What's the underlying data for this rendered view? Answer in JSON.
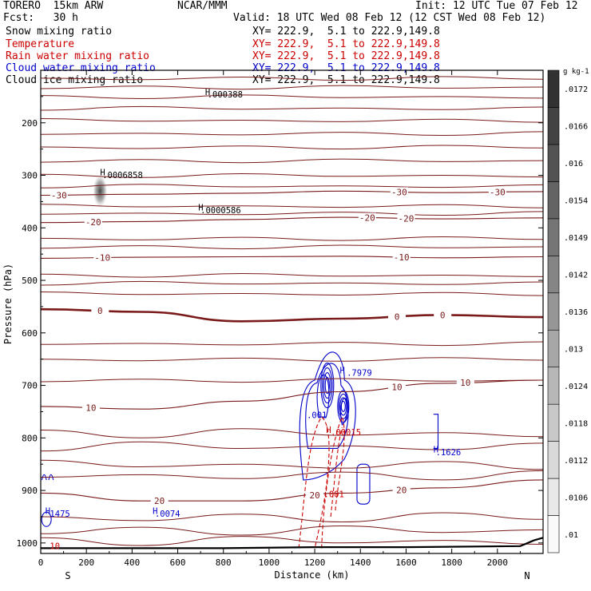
{
  "header": {
    "model": "TORERO  15km ARW",
    "center": "NCAR/MMM",
    "init": "Init: 12 UTC Tue 07 Feb 12",
    "fcst": "Fcst:   30 h",
    "valid": "Valid: 18 UTC Wed 08 Feb 12 (12 CST Wed 08 Feb 12)"
  },
  "fields": [
    {
      "label": "Snow mixing ratio",
      "xy": "XY= 222.9,  5.1 to 222.9,149.8",
      "color": "#000000"
    },
    {
      "label": "Temperature",
      "xy": "XY= 222.9,  5.1 to 222.9,149.8",
      "color": "#cc0000"
    },
    {
      "label": "Rain water mixing ratio",
      "xy": "XY= 222.9,  5.1 to 222.9,149.8",
      "color": "#cc0000"
    },
    {
      "label": "Cloud water mixing ratio",
      "xy": "XY= 222.9,  5.1 to 222.9,149.8",
      "color": "#0000cc"
    },
    {
      "label": "Cloud ice mixing ratio",
      "xy": "XY= 222.9,  5.1 to 222.9,149.8",
      "color": "#000000"
    }
  ],
  "chart_data": {
    "type": "contour-cross-section",
    "xlabel": "Distance (km)",
    "ylabel": "Pressure (hPa)",
    "xlim": [
      0,
      2200
    ],
    "ylim": [
      1020,
      100
    ],
    "x_ticks": [
      0,
      200,
      400,
      600,
      800,
      1000,
      1200,
      1400,
      1600,
      1800,
      2000
    ],
    "y_ticks": [
      200,
      300,
      400,
      500,
      600,
      700,
      800,
      900,
      1000
    ],
    "y_scale": "linear",
    "endpoints": {
      "left": "S",
      "right": "N"
    },
    "temperature_contours": [
      {
        "value": -30,
        "label": "-30",
        "label_x": [
          80,
          1570,
          2000
        ],
        "p": [
          338,
          336,
          334,
          330,
          333,
          331
        ]
      },
      {
        "value": -20,
        "label": "-20",
        "label_x": [
          230,
          1430,
          1600
        ],
        "p": [
          390,
          388,
          384,
          380,
          383,
          381
        ]
      },
      {
        "value": -10,
        "label": "-10",
        "label_x": [
          270,
          1580
        ],
        "p": [
          458,
          456,
          455,
          454,
          457,
          455
        ]
      },
      {
        "value": 0,
        "label": "0",
        "label_x": [
          260,
          1560,
          1760
        ],
        "p": [
          555,
          560,
          578,
          573,
          566,
          570
        ]
      },
      {
        "value": 10,
        "label": "10",
        "label_x": [
          220,
          1560,
          1860
        ],
        "p": [
          740,
          745,
          730,
          712,
          696,
          690
        ]
      },
      {
        "value": 20,
        "label": "20",
        "label_x": [
          520,
          1200,
          1580
        ],
        "p": [
          905,
          920,
          920,
          905,
          895,
          880
        ]
      }
    ],
    "colorbar": {
      "unit": "g kg-1",
      "levels": [
        ".01",
        ".0106",
        ".0112",
        ".0118",
        ".0124",
        ".013",
        ".0136",
        ".0142",
        ".0149",
        ".0154",
        ".016",
        ".0166",
        ".0172"
      ]
    },
    "annotations": [
      {
        "text": "H",
        "x": 260,
        "p": 300,
        "color": "#000000"
      },
      {
        "text": ".0006858",
        "x": 270,
        "p": 305,
        "color": "#000000"
      },
      {
        "text": "H",
        "x": 690,
        "p": 367,
        "color": "#000000"
      },
      {
        "text": ".0000586",
        "x": 700,
        "p": 372,
        "color": "#000000"
      },
      {
        "text": "H",
        "x": 720,
        "p": 147,
        "color": "#000000"
      },
      {
        "text": ".000388",
        "x": 730,
        "p": 152,
        "color": "#000000"
      },
      {
        "text": "H",
        "x": 1310,
        "p": 677,
        "color": "#0000cc"
      },
      {
        "text": ".7979",
        "x": 1340,
        "p": 682,
        "color": "#0000cc"
      },
      {
        "text": ".001",
        "x": 1165,
        "p": 762,
        "color": "#0000cc"
      },
      {
        "text": "H",
        "x": 1250,
        "p": 790,
        "color": "#cc0000"
      },
      {
        "text": ".00015",
        "x": 1270,
        "p": 795,
        "color": "#cc0000"
      },
      {
        "text": "H",
        "x": 1720,
        "p": 828,
        "color": "#0000cc"
      },
      {
        "text": ".1626",
        "x": 1730,
        "p": 833,
        "color": "#0000cc"
      },
      {
        "text": ".001",
        "x": 1240,
        "p": 913,
        "color": "#cc0000"
      },
      {
        "text": "H",
        "x": 490,
        "p": 945,
        "color": "#0000cc"
      },
      {
        "text": ".0074",
        "x": 500,
        "p": 950,
        "color": "#0000cc"
      },
      {
        "text": "H",
        "x": 20,
        "p": 945,
        "color": "#0000cc"
      },
      {
        "text": "1475",
        "x": 40,
        "p": 950,
        "color": "#0000cc"
      },
      {
        "text": "10",
        "x": 40,
        "p": 1012,
        "color": "#cc0000"
      }
    ]
  }
}
